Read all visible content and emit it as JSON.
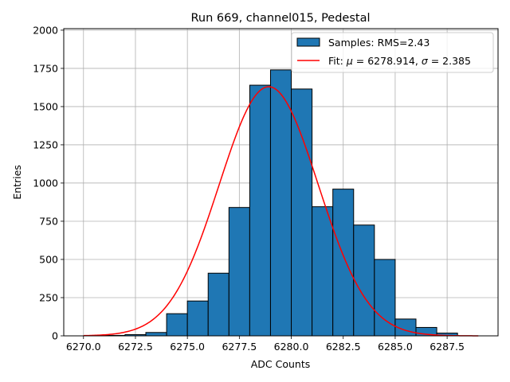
{
  "chart_data": {
    "type": "bar",
    "title": "Run 669, channel015, Pedestal",
    "xlabel": "ADC Counts",
    "ylabel": "Entries",
    "xlim": [
      6269.05,
      6289.95
    ],
    "ylim": [
      0,
      2010
    ],
    "grid": true,
    "legend_position": "top-right",
    "x_ticks": [
      6270.0,
      6272.5,
      6275.0,
      6277.5,
      6280.0,
      6282.5,
      6285.0,
      6287.5
    ],
    "x_tick_labels": [
      "6270.0",
      "6272.5",
      "6275.0",
      "6277.5",
      "6280.0",
      "6282.5",
      "6285.0",
      "6287.5"
    ],
    "y_ticks": [
      0,
      250,
      500,
      750,
      1000,
      1250,
      1500,
      1750,
      2000
    ],
    "y_tick_labels": [
      "0",
      "250",
      "500",
      "750",
      "1000",
      "1250",
      "1500",
      "1750",
      "2000"
    ],
    "bin_edges": [
      6270,
      6271,
      6272,
      6273,
      6274,
      6275,
      6276,
      6277,
      6278,
      6279,
      6280,
      6281,
      6282,
      6283,
      6284,
      6285,
      6286,
      6287,
      6288,
      6289
    ],
    "histogram": {
      "name": "Samples: RMS=2.43",
      "color": "#1f77b4",
      "edgecolor": "#000000",
      "values": [
        0,
        3,
        8,
        22,
        145,
        228,
        410,
        840,
        1640,
        1740,
        1615,
        845,
        960,
        725,
        500,
        110,
        55,
        18,
        0
      ]
    },
    "fit": {
      "name_prefix": "Fit: ",
      "name_parts": [
        "μ",
        " = 6278.914, ",
        "σ",
        " = 2.385"
      ],
      "color": "#ff0000",
      "mu": 6278.914,
      "sigma": 2.385,
      "amplitude": 1630,
      "x_range": [
        6270,
        6289
      ]
    }
  }
}
